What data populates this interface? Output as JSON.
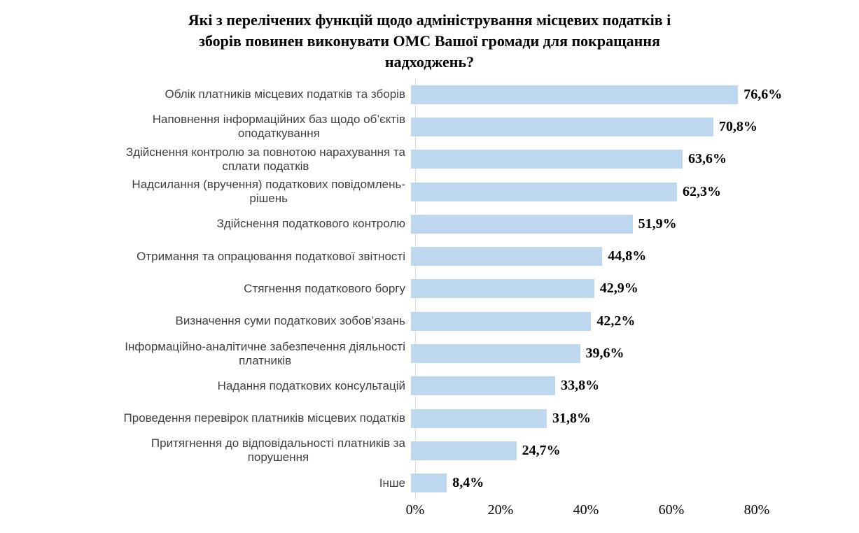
{
  "chart_data": {
    "type": "bar",
    "orientation": "horizontal",
    "title": "Які з перелічених функцій щодо адміністрування місцевих податків і\nзборів повинен виконувати ОМС Вашої громади для покращання\nнадходжень?",
    "categories": [
      "Облік платників місцевих податків та зборів",
      "Наповнення інформаційних баз щодо об’єктів\nоподаткування",
      "Здійснення контролю за повнотою нарахування та\nсплати податків",
      "Надсилання (вручення) податкових повідомлень-\nрішень",
      "Здійснення податкового контролю",
      "Отримання та опрацювання податкової звітності",
      "Стягнення податкового боргу",
      "Визначення суми податкових зобов’язань",
      "Інформаційно-аналітичне забезпечення діяльності\nплатників",
      "Надання податкових консультацій",
      "Проведення перевірок платників місцевих податків",
      "Притягнення до відповідальності платників за\nпорушення",
      "Інше"
    ],
    "values": [
      76.6,
      70.8,
      63.6,
      62.3,
      51.9,
      44.8,
      42.9,
      42.2,
      39.6,
      33.8,
      31.8,
      24.7,
      8.4
    ],
    "value_labels": [
      "76,6%",
      "70,8%",
      "63,6%",
      "62,3%",
      "51,9%",
      "44,8%",
      "42,9%",
      "42,2%",
      "39,6%",
      "33,8%",
      "31,8%",
      "24,7%",
      "8,4%"
    ],
    "x_tick_labels": [
      "0%",
      "20%",
      "40%",
      "60%",
      "80%"
    ],
    "x_tick_values": [
      0,
      20,
      40,
      60,
      80
    ],
    "xlim": [
      0,
      80
    ],
    "grid": false,
    "legend": false,
    "bar_color": "#BDD7EE",
    "axis_line_color": "#D9D9D9",
    "category_label_color": "#404040",
    "value_label_color": "#000000"
  }
}
